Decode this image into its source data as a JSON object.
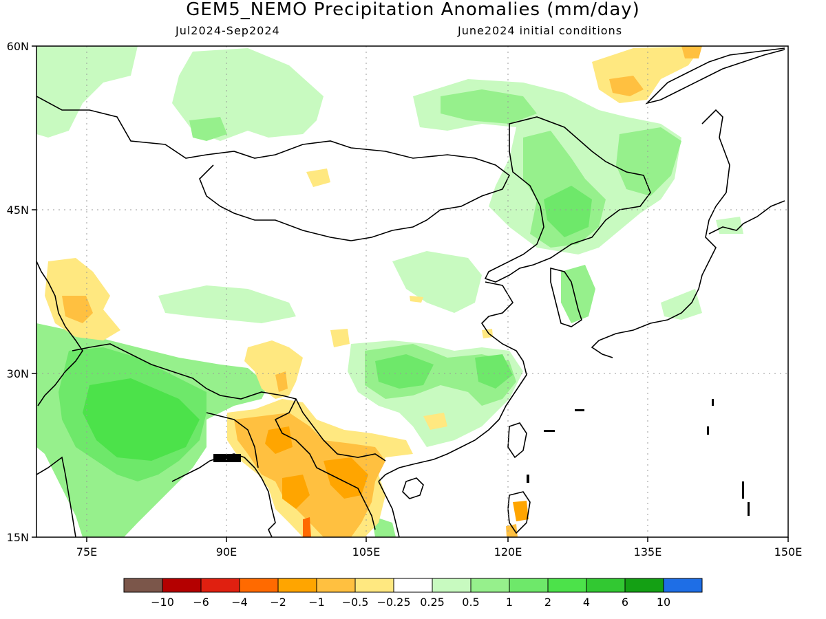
{
  "header": {
    "title": "GEM5_NEMO Precipitation Anomalies (mm/day)",
    "period": "Jul2024-Sep2024",
    "init": "June2024 initial conditions"
  },
  "map": {
    "lat_labels": [
      "60N",
      "45N",
      "30N",
      "15N"
    ],
    "lon_labels": [
      "75E",
      "90E",
      "105E",
      "120E",
      "135E",
      "150E"
    ]
  },
  "colorbar": {
    "colors": [
      "#7b564a",
      "#b40000",
      "#e02010",
      "#ff6a00",
      "#ffa500",
      "#ffc040",
      "#ffe880",
      "#ffffff",
      "#c8fac0",
      "#96f08c",
      "#6ee86a",
      "#4ce24a",
      "#32c832",
      "#14a014",
      "#1e6ee6"
    ],
    "labels": [
      "-10",
      "-6",
      "-4",
      "-2",
      "-1",
      "-0.5",
      "-0.25",
      "0.25",
      "0.5",
      "1",
      "2",
      "4",
      "6",
      "10"
    ]
  }
}
